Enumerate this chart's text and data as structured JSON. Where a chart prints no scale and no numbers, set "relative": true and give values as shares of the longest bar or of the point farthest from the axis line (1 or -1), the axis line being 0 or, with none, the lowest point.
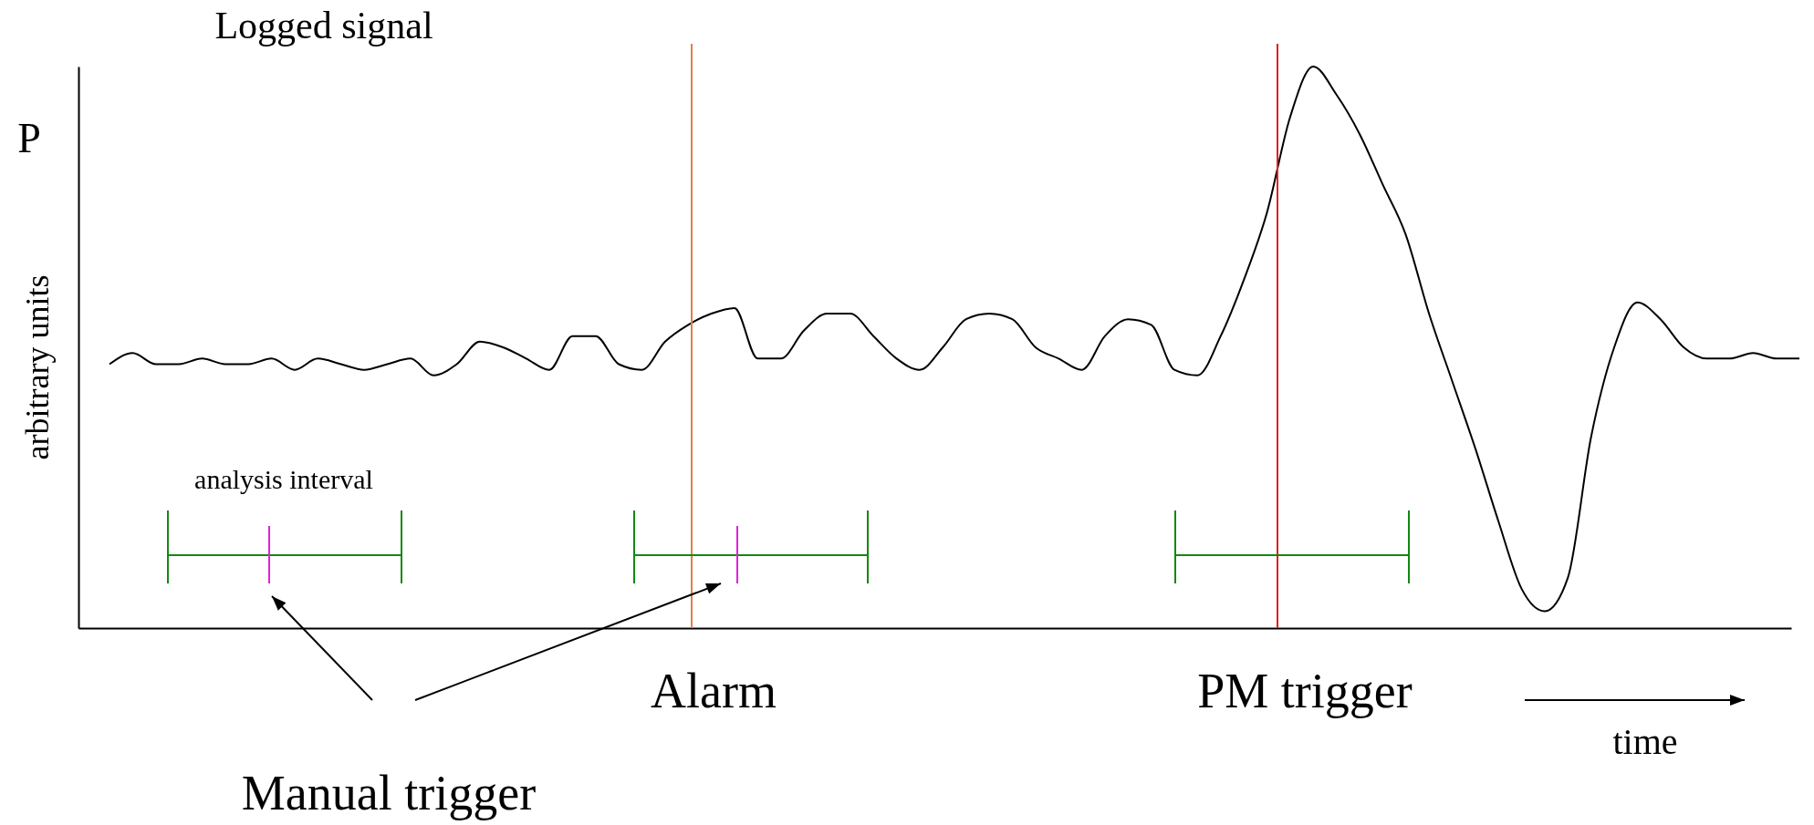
{
  "chart_data": {
    "type": "line",
    "title": "Logged signal",
    "ylabel": "arbitrary units",
    "xlabel": "time",
    "relative": true,
    "grid": false,
    "marker": "none",
    "line_style": "solid",
    "categories": [
      null,
      null,
      null,
      null,
      null,
      null,
      null,
      null,
      null,
      null,
      null,
      null,
      null,
      null,
      null,
      null,
      null,
      null,
      null,
      null,
      null,
      null,
      null,
      null,
      null,
      null,
      null,
      null,
      null,
      null,
      null,
      null,
      null,
      null,
      null,
      null,
      null,
      null,
      null,
      null,
      null,
      null,
      null,
      null,
      null,
      null,
      null,
      null,
      null,
      null,
      null,
      null,
      null,
      null,
      null,
      null,
      null,
      null,
      null,
      null,
      null,
      null,
      null,
      null,
      null,
      null,
      null,
      null,
      null,
      null,
      null,
      null,
      null,
      null
    ],
    "series": [
      {
        "color": "#000000",
        "values": [
          0.47,
          0.49,
          0.47,
          0.47,
          0.48,
          0.47,
          0.47,
          0.48,
          0.46,
          0.48,
          0.47,
          0.46,
          0.47,
          0.48,
          0.45,
          0.47,
          0.51,
          0.5,
          0.48,
          0.46,
          0.52,
          0.52,
          0.47,
          0.46,
          0.51,
          0.54,
          0.56,
          0.57,
          0.48,
          0.48,
          0.53,
          0.56,
          0.56,
          0.52,
          0.48,
          0.46,
          0.5,
          0.55,
          0.56,
          0.55,
          0.5,
          0.48,
          0.46,
          0.52,
          0.55,
          0.54,
          0.46,
          0.45,
          0.52,
          0.62,
          0.74,
          0.91,
          1,
          0.95,
          0.88,
          0.79,
          0.7,
          0.56,
          0.44,
          0.32,
          0.19,
          0.07,
          0.03,
          0.09,
          0.34,
          0.5,
          0.58,
          0.55,
          0.5,
          0.48,
          0.48,
          0.49,
          0.48,
          0.48
        ]
      }
    ],
    "annotations": [
      "P",
      "analysis interval",
      "Alarm",
      "PM trigger",
      "Manual trigger"
    ]
  }
}
